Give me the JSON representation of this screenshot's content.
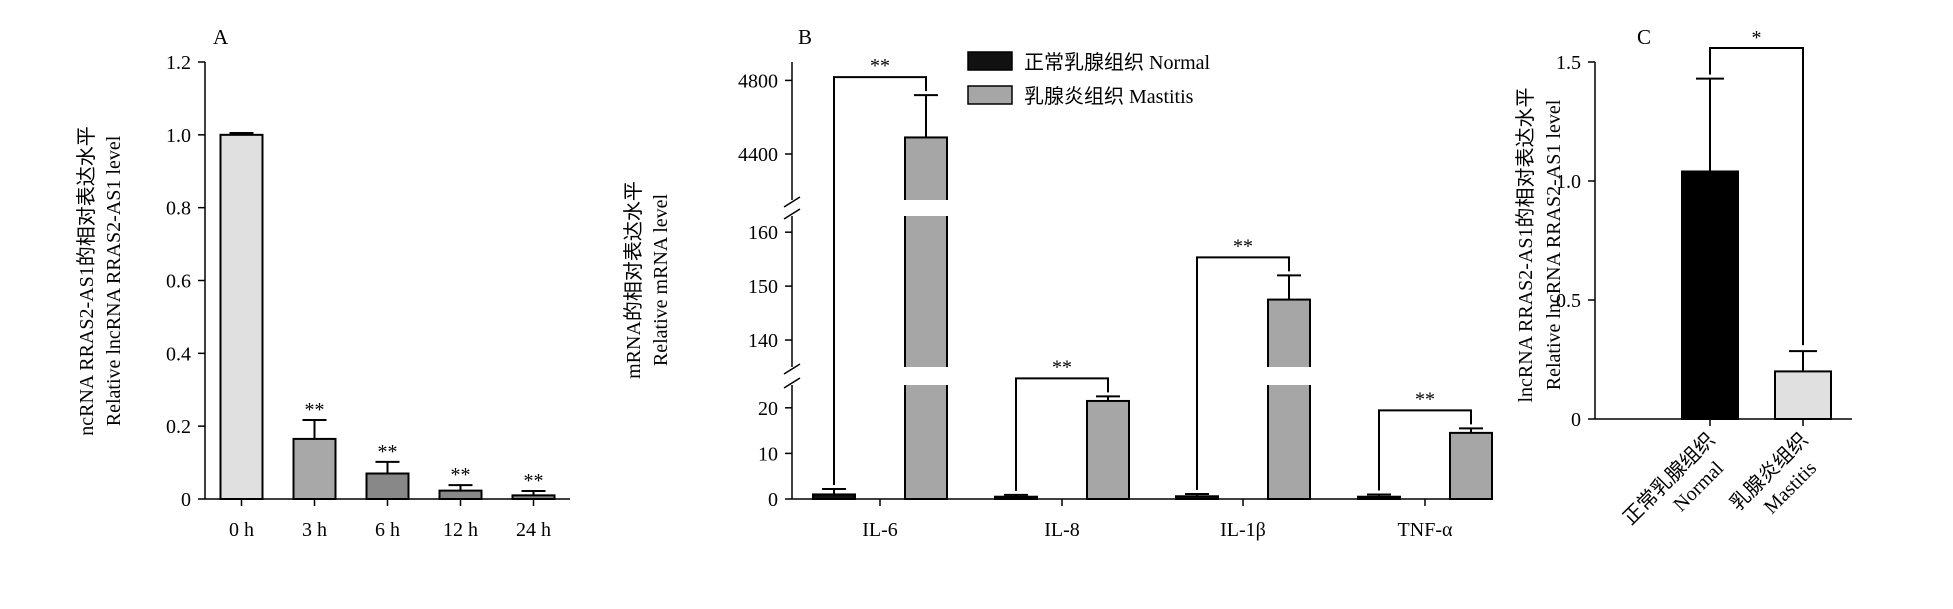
{
  "chart_data": [
    {
      "panel": "A",
      "type": "bar",
      "categories": [
        "0 h",
        "3 h",
        "6 h",
        "12 h",
        "24 h"
      ],
      "values": [
        1.0,
        0.165,
        0.07,
        0.023,
        0.01
      ],
      "errors": [
        0.005,
        0.052,
        0.032,
        0.015,
        0.012
      ],
      "colors": [
        "#e0e0e0",
        "#a8a8a8",
        "#888888",
        "#888888",
        "#888888"
      ],
      "significance": [
        "",
        "**",
        "**",
        "**",
        "**"
      ],
      "ylabel": [
        "ncRNA RRAS2-AS1的相对表达水平",
        "Relative lncRNA RRAS2-AS1 level"
      ],
      "ylim": [
        0,
        1.2
      ],
      "yticks": [
        "0",
        "0.2",
        "0.4",
        "0.6",
        "0.8",
        "1.0",
        "1.2"
      ]
    },
    {
      "panel": "B",
      "type": "bar",
      "categories": [
        "IL-6",
        "IL-8",
        "IL-1β",
        "TNF-α"
      ],
      "series": [
        {
          "name": "正常乳腺组织 Normal",
          "color": "#111111",
          "values": [
            1.0,
            0.5,
            0.6,
            0.5
          ],
          "errors": [
            1.2,
            0.4,
            0.5,
            0.5
          ]
        },
        {
          "name": "乳腺炎组织 Mastitis",
          "color": "#a6a6a6",
          "values": [
            4490,
            21.5,
            147.5,
            14.5
          ],
          "errors": [
            230,
            1.0,
            4.5,
            1.0
          ]
        }
      ],
      "significance": [
        "**",
        "**",
        "**",
        "**"
      ],
      "ylabel": [
        "mRNA的相对表达水平",
        "Relative mRNA level"
      ],
      "axis_segments": [
        {
          "range": [
            0,
            25
          ],
          "ticks": [
            0,
            10,
            20
          ]
        },
        {
          "range": [
            135,
            163
          ],
          "ticks": [
            140,
            150,
            160
          ]
        },
        {
          "range": [
            4150,
            4900
          ],
          "ticks": [
            4400,
            4800
          ]
        }
      ],
      "legend": "top-center"
    },
    {
      "panel": "C",
      "type": "bar",
      "categories": [
        "正常乳腺组织\nNormal",
        "乳腺炎组织\nMastitis"
      ],
      "values": [
        1.04,
        0.2
      ],
      "errors": [
        0.39,
        0.085
      ],
      "colors": [
        "#000000",
        "#e0e0e0"
      ],
      "significance": [
        "*"
      ],
      "ylabel": [
        "lncRNA RRAS2-AS1的相对表达水平",
        "Relative lncRNA RRAS2-AS1 level"
      ],
      "ylim": [
        0,
        1.5
      ],
      "yticks": [
        "0",
        "0.5",
        "1.0",
        "1.5"
      ]
    }
  ]
}
